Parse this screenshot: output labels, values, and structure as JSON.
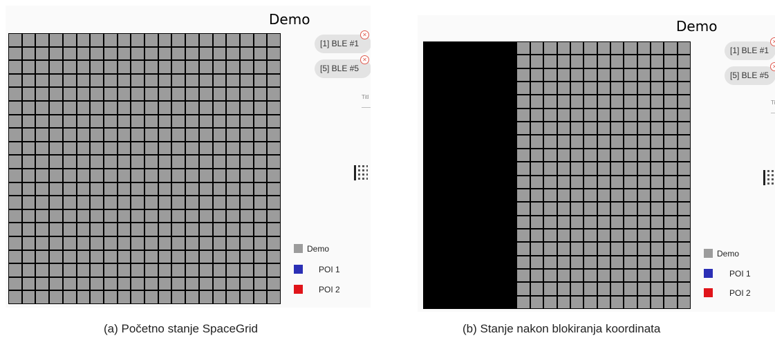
{
  "panel_a": {
    "title": "Demo",
    "grid": {
      "rows": 20,
      "cols": 20,
      "blocked_cols": 0
    },
    "chips": [
      {
        "label": "[1]  BLE #1",
        "close_icon": "close-circle-icon"
      },
      {
        "label": "[5]  BLE #5",
        "close_icon": "close-circle-icon"
      }
    ],
    "field_label": "Titl",
    "legend": [
      {
        "label": "Demo",
        "color": "#9c9c9c"
      },
      {
        "label": "POI 1",
        "color": "#2b2fb5"
      },
      {
        "label": "POI 2",
        "color": "#e0141a"
      }
    ],
    "caption": "(a) Početno stanje SpaceGrid"
  },
  "panel_b": {
    "title": "Demo",
    "grid": {
      "rows": 20,
      "cols": 20,
      "blocked_cols": 7
    },
    "chips": [
      {
        "label": "[1]  BLE #1",
        "close_icon": "close-circle-icon"
      },
      {
        "label": "[5]  BLE #5",
        "close_icon": "close-circle-icon"
      }
    ],
    "field_label": "Ti",
    "legend": [
      {
        "label": "Demo",
        "color": "#9c9c9c"
      },
      {
        "label": "POI 1",
        "color": "#2b2fb5"
      },
      {
        "label": "POI 2",
        "color": "#e0141a"
      }
    ],
    "caption": "(b) Stanje nakon blokiranja koordinata"
  },
  "colors": {
    "grid_cell": "#9c9c9c",
    "grid_line": "#000000",
    "blocked": "#000000",
    "chip_bg": "#e3e3e3",
    "chip_close": "#e05a4f"
  }
}
